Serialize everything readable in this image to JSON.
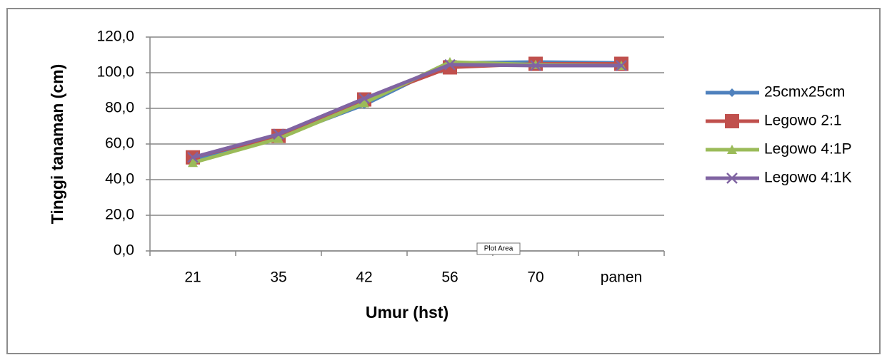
{
  "chart_data": {
    "type": "line",
    "xlabel": "Umur (hst)",
    "ylabel": "Tinggi tanaman (cm)",
    "categories": [
      "21",
      "35",
      "42",
      "56",
      "70",
      "panen"
    ],
    "series": [
      {
        "name": "25cmx25cm",
        "color": "#4f81bd",
        "marker": "diamond",
        "values": [
          50.5,
          64,
          82,
          105.5,
          106,
          105.5
        ]
      },
      {
        "name": "Legowo 2:1",
        "color": "#c0504d",
        "marker": "square",
        "values": [
          52.5,
          64.5,
          85,
          103,
          105,
          105
        ]
      },
      {
        "name": "Legowo 4:1P",
        "color": "#9bbb59",
        "marker": "triangle",
        "values": [
          49.5,
          63,
          83,
          106,
          104.5,
          104
        ]
      },
      {
        "name": "Legowo 4:1K",
        "color": "#8064a2",
        "marker": "x",
        "values": [
          52.5,
          65.5,
          85.5,
          104.5,
          104,
          104
        ]
      }
    ],
    "ylim": [
      0,
      120
    ],
    "yticks": [
      {
        "value": 0,
        "label": "0,0"
      },
      {
        "value": 20,
        "label": "20,0"
      },
      {
        "value": 40,
        "label": "40,0"
      },
      {
        "value": 60,
        "label": "60,0"
      },
      {
        "value": 80,
        "label": "80,0"
      },
      {
        "value": 100,
        "label": "100,0"
      },
      {
        "value": 120,
        "label": "120,0"
      }
    ],
    "grid": true,
    "legend": "right",
    "tooltip": "Plot Area"
  }
}
